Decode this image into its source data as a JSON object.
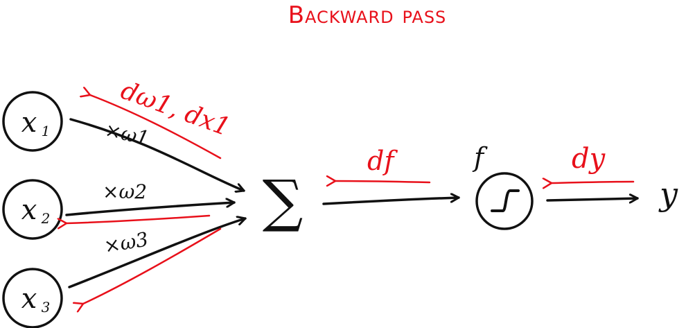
{
  "title": "Backward pass",
  "colors": {
    "ink": "#111111",
    "grad": "#e8101a"
  },
  "inputs": [
    {
      "name": "x",
      "sub": "1"
    },
    {
      "name": "x",
      "sub": "2"
    },
    {
      "name": "x",
      "sub": "3"
    }
  ],
  "weights": [
    "×ω1",
    "×ω2",
    "×ω3"
  ],
  "sum_symbol": "∑",
  "activation": {
    "label": "f",
    "icon": "sigmoid-step-icon"
  },
  "output": "y",
  "gradients": {
    "w1_x1": "dω1, dx1",
    "f": "df",
    "y": "dy"
  }
}
